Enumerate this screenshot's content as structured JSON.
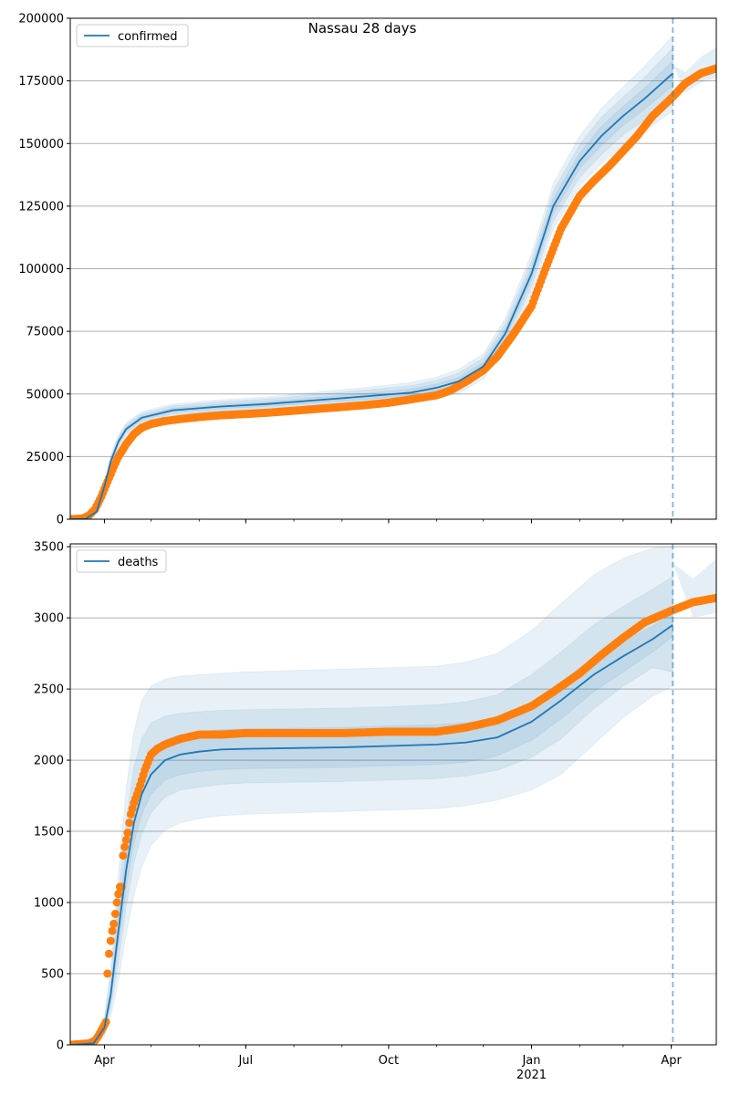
{
  "title": "Nassau 28 days",
  "colors": {
    "model": "#1f77b4",
    "observed": "#ff7f0e",
    "band": "#1f77b4",
    "grid": "#b0b0b0"
  },
  "x_axis": {
    "start": "2020-03-10",
    "end": "2021-04-30",
    "ticks": [
      {
        "date": "2020-04-01",
        "label": "Apr",
        "sub": ""
      },
      {
        "date": "2020-07-01",
        "label": "Jul",
        "sub": ""
      },
      {
        "date": "2020-10-01",
        "label": "Oct",
        "sub": ""
      },
      {
        "date": "2021-01-01",
        "label": "Jan",
        "sub": "2021"
      },
      {
        "date": "2021-04-01",
        "label": "Apr",
        "sub": ""
      }
    ],
    "forecast_date": "2021-04-02"
  },
  "chart_data": [
    {
      "type": "line",
      "legend": "confirmed",
      "legend_position": "upper-left",
      "grid": "horizontal",
      "ylim": [
        0,
        200000
      ],
      "yticks": [
        "0",
        "25000",
        "50000",
        "75000",
        "100000",
        "125000",
        "150000",
        "175000",
        "200000"
      ],
      "yvalues": [
        0,
        25000,
        50000,
        75000,
        100000,
        125000,
        150000,
        175000,
        200000
      ],
      "model": {
        "x": [
          "2020-03-10",
          "2020-03-20",
          "2020-03-27",
          "2020-04-01",
          "2020-04-05",
          "2020-04-10",
          "2020-04-15",
          "2020-04-25",
          "2020-05-15",
          "2020-06-15",
          "2020-07-15",
          "2020-08-15",
          "2020-09-15",
          "2020-10-15",
          "2020-11-01",
          "2020-11-15",
          "2020-12-01",
          "2020-12-15",
          "2021-01-01",
          "2021-01-15",
          "2021-02-01",
          "2021-02-15",
          "2021-03-01",
          "2021-03-15",
          "2021-04-02"
        ],
        "y": [
          0,
          200,
          3000,
          13000,
          23000,
          31000,
          36000,
          40500,
          43500,
          45000,
          46000,
          47500,
          49000,
          50500,
          52500,
          55000,
          61000,
          74000,
          98000,
          125000,
          143000,
          153000,
          161000,
          168000,
          178000
        ]
      },
      "bands": [
        {
          "lower": [
            0,
            100,
            2500,
            11500,
            20500,
            28500,
            33500,
            38000,
            41000,
            42300,
            43200,
            44300,
            45500,
            46500,
            48200,
            50200,
            56000,
            68000,
            90000,
            116000,
            133000,
            142000,
            149500,
            155000,
            163000
          ],
          "upper": [
            0,
            300,
            3500,
            14500,
            25500,
            33500,
            38500,
            43000,
            46000,
            47700,
            48800,
            50700,
            52500,
            54500,
            56800,
            59800,
            66000,
            80000,
            106000,
            134000,
            153000,
            164000,
            172500,
            181000,
            193000
          ]
        },
        {
          "lower": [
            0,
            120,
            2600,
            12000,
            21300,
            29200,
            34300,
            38800,
            41800,
            43100,
            44000,
            45200,
            46500,
            47700,
            49500,
            51700,
            57600,
            70000,
            92800,
            119000,
            136500,
            145500,
            153500,
            159500,
            168000
          ],
          "upper": [
            0,
            280,
            3400,
            14000,
            24700,
            32800,
            37700,
            42200,
            45200,
            46900,
            48000,
            49800,
            51500,
            53300,
            55500,
            58300,
            64400,
            78000,
            103200,
            131000,
            149500,
            160500,
            168500,
            176500,
            188000
          ]
        },
        {
          "lower": [
            0,
            150,
            2800,
            12500,
            22200,
            30100,
            35200,
            39700,
            42700,
            44100,
            45100,
            46400,
            47800,
            49100,
            51000,
            53400,
            59400,
            72000,
            95400,
            122000,
            140000,
            149200,
            157200,
            163800,
            173000
          ],
          "upper": [
            0,
            250,
            3200,
            13500,
            23800,
            31900,
            36800,
            41300,
            44300,
            45900,
            46900,
            48600,
            50200,
            51900,
            54000,
            56600,
            62600,
            76000,
            100600,
            128000,
            146000,
            156800,
            164800,
            172200,
            183000
          ]
        }
      ],
      "observed": {
        "x": [
          "2020-03-10",
          "2020-03-18",
          "2020-03-22",
          "2020-03-26",
          "2020-03-30",
          "2020-04-03",
          "2020-04-07",
          "2020-04-10",
          "2020-04-15",
          "2020-04-20",
          "2020-04-25",
          "2020-05-01",
          "2020-05-10",
          "2020-05-20",
          "2020-06-01",
          "2020-06-15",
          "2020-07-01",
          "2020-07-15",
          "2020-08-01",
          "2020-08-15",
          "2020-09-01",
          "2020-09-15",
          "2020-10-01",
          "2020-10-15",
          "2020-11-01",
          "2020-11-10",
          "2020-11-20",
          "2020-12-01",
          "2020-12-10",
          "2020-12-20",
          "2021-01-01",
          "2021-01-10",
          "2021-01-20",
          "2021-02-01",
          "2021-02-10",
          "2021-02-20",
          "2021-03-01",
          "2021-03-10",
          "2021-03-20",
          "2021-04-01",
          "2021-04-10",
          "2021-04-20",
          "2021-04-30"
        ],
        "y": [
          0,
          300,
          1500,
          4000,
          9000,
          15000,
          21000,
          25000,
          30000,
          34000,
          36500,
          38000,
          39200,
          40000,
          40800,
          41500,
          42000,
          42500,
          43300,
          44000,
          44800,
          45500,
          46500,
          47800,
          49500,
          51500,
          55000,
          59500,
          65000,
          73500,
          85000,
          100000,
          116000,
          129000,
          135000,
          141000,
          147000,
          153000,
          161000,
          168000,
          174000,
          178000,
          180000
        ]
      }
    },
    {
      "type": "line",
      "legend": "deaths",
      "legend_position": "upper-left",
      "grid": "horizontal",
      "ylim": [
        0,
        3520
      ],
      "yticks": [
        "0",
        "500",
        "1000",
        "1500",
        "2000",
        "2500",
        "3000",
        "3500"
      ],
      "yvalues": [
        0,
        500,
        1000,
        1500,
        2000,
        2500,
        3000,
        3500
      ],
      "model": {
        "x": [
          "2020-03-10",
          "2020-03-25",
          "2020-04-01",
          "2020-04-05",
          "2020-04-10",
          "2020-04-15",
          "2020-04-20",
          "2020-04-25",
          "2020-05-01",
          "2020-05-10",
          "2020-05-20",
          "2020-06-01",
          "2020-06-15",
          "2020-07-01",
          "2020-08-01",
          "2020-09-01",
          "2020-10-01",
          "2020-11-01",
          "2020-11-20",
          "2020-12-10",
          "2021-01-01",
          "2021-01-20",
          "2021-02-10",
          "2021-03-01",
          "2021-03-20",
          "2021-04-02"
        ],
        "y": [
          0,
          10,
          120,
          350,
          800,
          1230,
          1560,
          1760,
          1900,
          2000,
          2040,
          2060,
          2075,
          2080,
          2085,
          2090,
          2100,
          2110,
          2125,
          2160,
          2270,
          2420,
          2600,
          2730,
          2850,
          2950
        ]
      },
      "bands": [
        {
          "lower": [
            0,
            0,
            60,
            200,
            450,
            780,
            1050,
            1250,
            1400,
            1510,
            1560,
            1590,
            1610,
            1620,
            1630,
            1640,
            1650,
            1660,
            1680,
            1720,
            1790,
            1900,
            2110,
            2300,
            2450,
            2520
          ],
          "upper": [
            0,
            30,
            200,
            550,
            1200,
            1800,
            2200,
            2420,
            2520,
            2570,
            2590,
            2600,
            2610,
            2620,
            2630,
            2640,
            2650,
            2660,
            2690,
            2750,
            2910,
            3100,
            3300,
            3420,
            3490,
            3500
          ]
        },
        {
          "lower": [
            0,
            5,
            80,
            260,
            580,
            970,
            1280,
            1480,
            1630,
            1740,
            1790,
            1810,
            1830,
            1840,
            1845,
            1850,
            1860,
            1870,
            1890,
            1930,
            2020,
            2150,
            2360,
            2520,
            2650,
            2620
          ],
          "upper": [
            0,
            20,
            170,
            470,
            1050,
            1580,
            1950,
            2150,
            2260,
            2310,
            2330,
            2340,
            2350,
            2355,
            2360,
            2365,
            2375,
            2390,
            2410,
            2460,
            2600,
            2760,
            2950,
            3080,
            3200,
            3290
          ]
        },
        {
          "lower": [
            0,
            8,
            100,
            310,
            690,
            1100,
            1420,
            1620,
            1760,
            1860,
            1900,
            1920,
            1935,
            1940,
            1945,
            1950,
            1960,
            1970,
            1985,
            2030,
            2140,
            2290,
            2480,
            2620,
            2760,
            2870
          ],
          "upper": [
            0,
            14,
            140,
            400,
            920,
            1360,
            1700,
            1900,
            2040,
            2140,
            2180,
            2200,
            2215,
            2220,
            2225,
            2230,
            2240,
            2250,
            2265,
            2290,
            2400,
            2550,
            2720,
            2840,
            2940,
            3030
          ]
        }
      ],
      "observed": {
        "x": [
          "2020-03-10",
          "2020-03-22",
          "2020-03-26",
          "2020-03-28",
          "2020-03-30",
          "2020-04-02",
          "2020-04-03",
          "2020-04-04",
          "2020-04-05",
          "2020-04-06",
          "2020-04-07",
          "2020-04-08",
          "2020-04-09",
          "2020-04-10",
          "2020-04-11",
          "2020-04-12",
          "2020-04-13",
          "2020-04-14",
          "2020-04-15",
          "2020-04-16",
          "2020-04-17",
          "2020-04-18",
          "2020-04-20",
          "2020-04-23",
          "2020-04-27",
          "2020-05-01",
          "2020-05-05",
          "2020-05-10",
          "2020-05-15",
          "2020-05-20",
          "2020-06-01",
          "2020-06-15",
          "2020-07-01",
          "2020-08-01",
          "2020-09-01",
          "2020-10-01",
          "2020-11-01",
          "2020-11-20",
          "2020-12-10",
          "2021-01-01",
          "2021-01-15",
          "2021-02-01",
          "2021-02-15",
          "2021-03-01",
          "2021-03-15",
          "2021-04-01",
          "2021-04-15",
          "2021-04-30"
        ],
        "y": [
          0,
          10,
          30,
          60,
          100,
          160,
          500,
          640,
          730,
          800,
          850,
          920,
          1000,
          1060,
          1110,
          1110,
          1330,
          1390,
          1440,
          1490,
          1560,
          1620,
          1700,
          1790,
          1930,
          2040,
          2080,
          2110,
          2130,
          2150,
          2180,
          2180,
          2190,
          2190,
          2190,
          2200,
          2200,
          2230,
          2280,
          2380,
          2480,
          2610,
          2740,
          2860,
          2970,
          3050,
          3110,
          3140
        ]
      }
    }
  ]
}
